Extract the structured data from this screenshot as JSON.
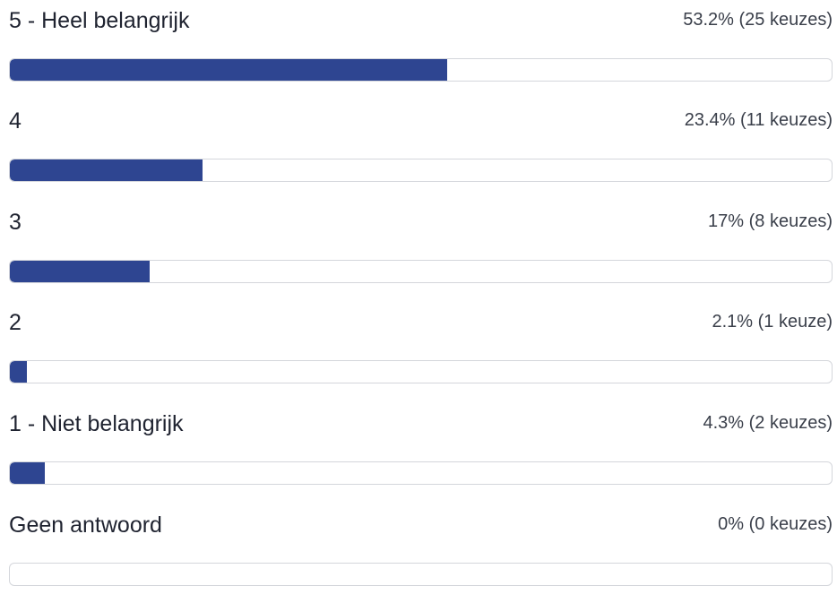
{
  "chart_data": {
    "type": "bar",
    "orientation": "horizontal",
    "bar_color": "#2e4591",
    "categories": [
      "5 - Heel belangrijk",
      "4",
      "3",
      "2",
      "1 - Niet belangrijk",
      "Geen antwoord"
    ],
    "values": [
      53.2,
      23.4,
      17,
      2.1,
      4.3,
      0
    ],
    "counts": [
      25,
      11,
      8,
      1,
      2,
      0
    ],
    "stat_labels": [
      "53.2% (25 keuzes)",
      "23.4% (11 keuzes)",
      "17% (8 keuzes)",
      "2.1% (1 keuze)",
      "4.3% (2 keuzes)",
      "0% (0 keuzes)"
    ],
    "xlim": [
      0,
      100
    ]
  }
}
